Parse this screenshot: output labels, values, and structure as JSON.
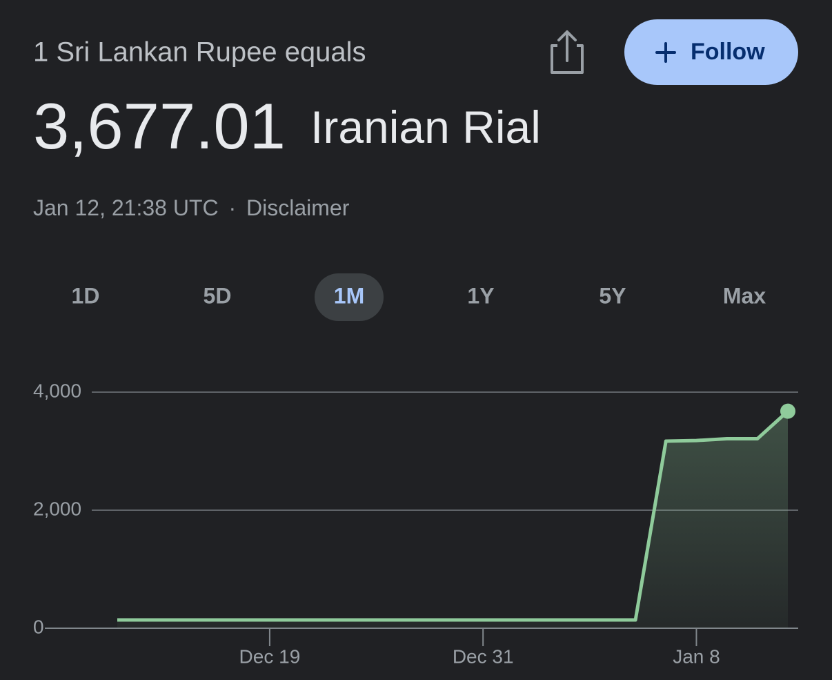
{
  "header": {
    "subtitle": "1 Sri Lankan Rupee equals",
    "value": "3,677.01",
    "currency": "Iranian Rial",
    "timestamp": "Jan 12, 21:38 UTC",
    "separator": "·",
    "disclaimer": "Disclaimer"
  },
  "follow_button": "Follow",
  "ranges": [
    "1D",
    "5D",
    "1M",
    "1Y",
    "5Y",
    "Max"
  ],
  "selected_range_index": 2,
  "chart_data": {
    "type": "line",
    "categories": [
      null,
      null,
      null,
      null,
      null,
      "Dec 19",
      null,
      null,
      null,
      null,
      null,
      null,
      "Dec 31",
      null,
      null,
      null,
      null,
      null,
      null,
      "Jan 8",
      null,
      null,
      null
    ],
    "values": [
      140,
      140,
      140,
      140,
      140,
      140,
      140,
      140,
      140,
      140,
      140,
      140,
      140,
      140,
      140,
      140,
      140,
      140,
      3170,
      3180,
      3210,
      3210,
      3677.01
    ],
    "color": "#8fcb9b",
    "ylim": [
      0,
      4000
    ],
    "yticks": [
      0,
      {
        "value": 2000,
        "label": "2,000"
      },
      {
        "value": 4000,
        "label": "4,000"
      }
    ],
    "grid": true
  }
}
